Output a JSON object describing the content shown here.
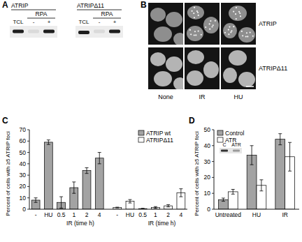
{
  "panels": {
    "A": {
      "letter": "A",
      "groups": [
        {
          "label": "ATRIP",
          "ip_label": "RPA",
          "lanes": [
            "TCL",
            "-",
            "+"
          ]
        },
        {
          "label": "ATRIPΔ11",
          "ip_label": "RPA",
          "lanes": [
            "TCL",
            "-",
            "+"
          ]
        }
      ]
    },
    "B": {
      "letter": "B",
      "rows": [
        "ATRIP",
        "ATRIPΔ11"
      ],
      "columns": [
        "None",
        "IR",
        "HU"
      ]
    }
  },
  "chart_data": [
    {
      "type": "bar",
      "title": "C",
      "y_label": "Percent of cells with ≥5 ATRIP foci",
      "categories": [
        "-",
        "HU",
        "0.5",
        "1",
        "2",
        "4",
        "-",
        "HU",
        "0.5",
        "1",
        "2",
        "4"
      ],
      "series": [
        {
          "name": "ATRIP wt",
          "color": "#a3a3a3",
          "values": [
            8,
            59,
            6,
            19,
            34,
            45,
            null,
            null,
            null,
            null,
            null,
            null
          ],
          "errors": [
            2,
            2,
            5,
            5,
            2.5,
            5,
            null,
            null,
            null,
            null,
            null,
            null
          ]
        },
        {
          "name": "ATRIPΔ11",
          "color": "#ffffff",
          "values": [
            null,
            null,
            null,
            null,
            null,
            null,
            1.5,
            7,
            0.5,
            1.5,
            3,
            14.5
          ],
          "errors": [
            null,
            null,
            null,
            null,
            null,
            null,
            0.3,
            1.5,
            0.3,
            0.8,
            1,
            3.5
          ]
        }
      ],
      "ylim": [
        0,
        70
      ],
      "yticks": [
        0,
        10,
        20,
        30,
        40,
        50,
        60,
        70
      ],
      "grid": false,
      "legend": "upper right",
      "annotations": [
        "IR (time h)",
        "IR (time h)"
      ]
    },
    {
      "type": "bar",
      "title": "D",
      "y_label": "Percent of cells with ≥5 ATRIP foci",
      "categories": [
        "Untreated",
        "HU",
        "IR"
      ],
      "series": [
        {
          "name": "Control",
          "color": "#a3a3a3",
          "values": [
            6,
            34,
            44
          ],
          "errors": [
            1,
            6,
            3.5
          ]
        },
        {
          "name": "ATR",
          "color": "#ffffff",
          "values": [
            11,
            15,
            33
          ],
          "errors": [
            1.5,
            3.5,
            9
          ]
        }
      ],
      "ylim": [
        0,
        50
      ],
      "yticks": [
        0,
        10,
        20,
        30,
        40,
        50
      ],
      "grid": false,
      "legend": "upper left",
      "annotations": [
        "C",
        "ATR"
      ]
    }
  ]
}
